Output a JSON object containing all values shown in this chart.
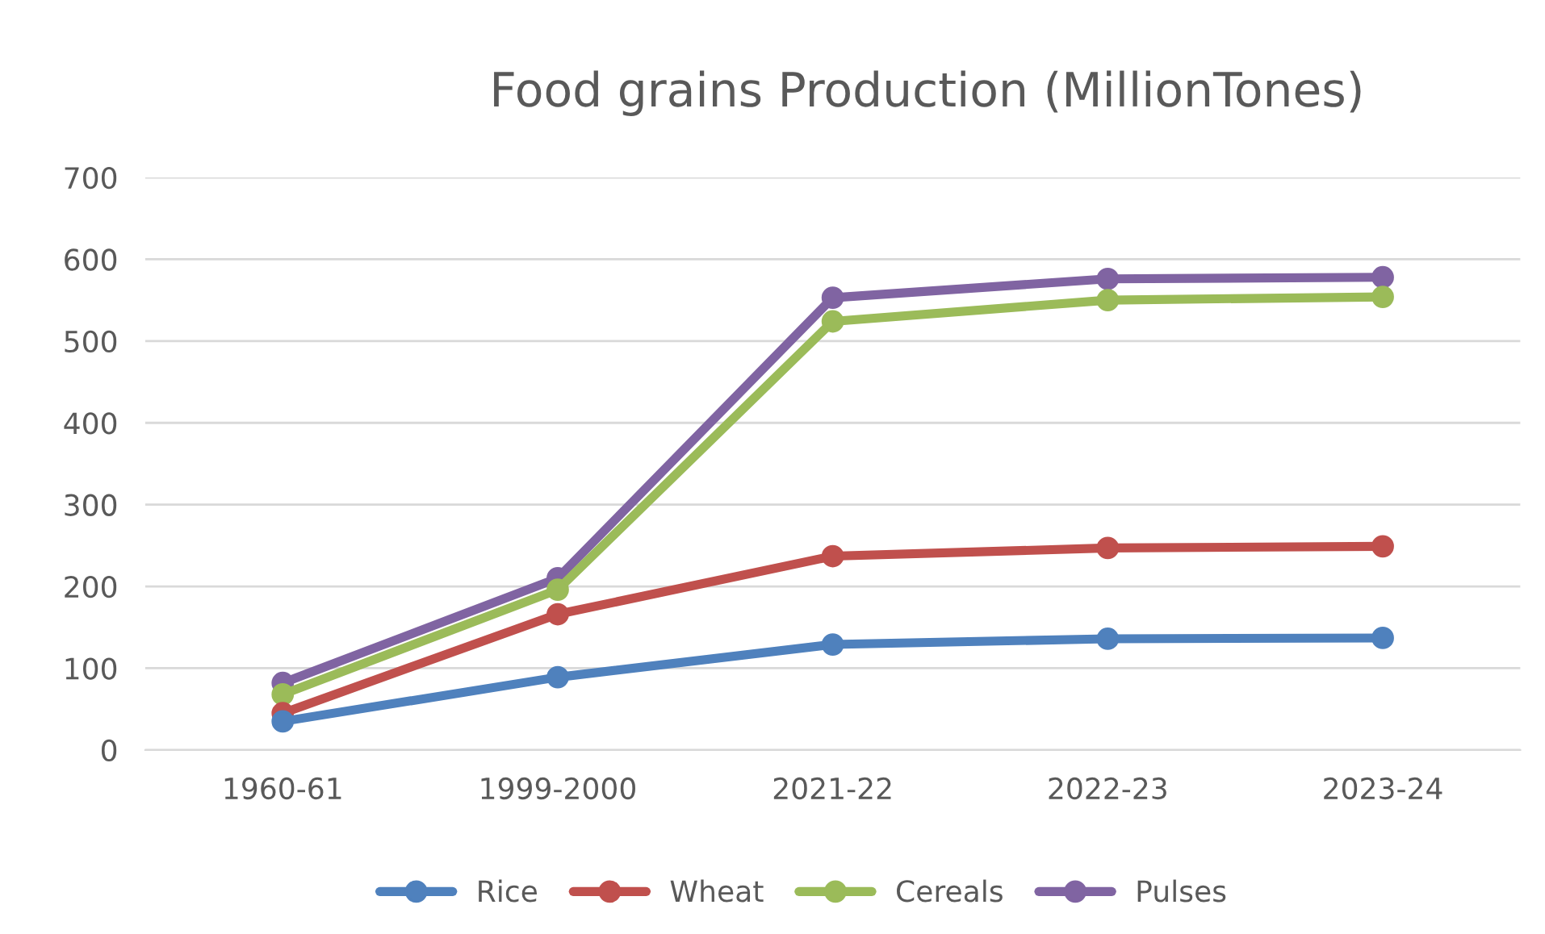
{
  "chart_data": {
    "type": "line",
    "title": "Food grains Production (MillionTones)",
    "categories": [
      "1960-61",
      "1999-2000",
      "2021-22",
      "2022-23",
      "2023-24"
    ],
    "series": [
      {
        "name": "Rice",
        "color": "#4f81bd",
        "values": [
          35,
          89,
          129,
          136,
          137
        ]
      },
      {
        "name": "Wheat",
        "color": "#c0504d",
        "values": [
          45,
          166,
          237,
          247,
          249
        ]
      },
      {
        "name": "Cereals",
        "color": "#9bbb59",
        "values": [
          68,
          196,
          524,
          550,
          554
        ]
      },
      {
        "name": "Pulses",
        "color": "#8064a2",
        "values": [
          82,
          210,
          553,
          576,
          578
        ]
      }
    ],
    "ylim": [
      0,
      700
    ],
    "yticks": [
      0,
      100,
      200,
      300,
      400,
      500,
      600,
      700
    ],
    "grid": "y",
    "legend": "bottom",
    "marker": "circle",
    "line_style": "solid"
  }
}
